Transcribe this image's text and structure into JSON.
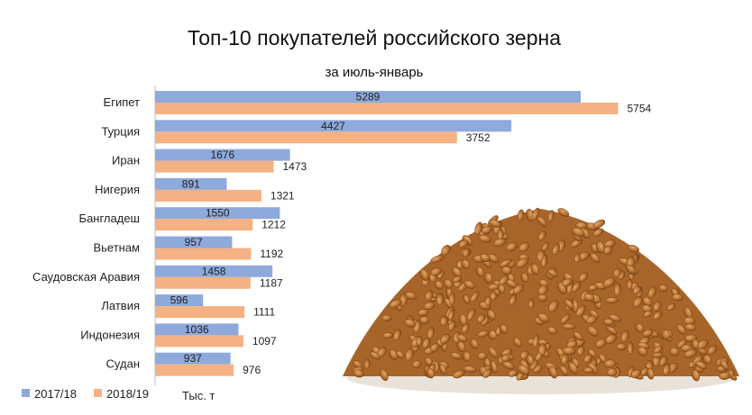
{
  "chart_data": {
    "type": "bar",
    "orientation": "horizontal",
    "title": "Топ-10 покупателей российского зерна",
    "subtitle": "за июль-январь",
    "unit": "Тыс. т",
    "categories": [
      "Египет",
      "Турция",
      "Иран",
      "Нигерия",
      "Бангладеш",
      "Вьетнам",
      "Саудовская Аравия",
      "Латвия",
      "Индонезия",
      "Судан"
    ],
    "series": [
      {
        "name": "2017/18",
        "color": "#8ea9db",
        "values": [
          5289,
          4427,
          1676,
          891,
          1550,
          957,
          1458,
          596,
          1036,
          937
        ]
      },
      {
        "name": "2018/19",
        "color": "#f4b183",
        "values": [
          5754,
          3752,
          1473,
          1321,
          1212,
          1192,
          1187,
          1111,
          1097,
          976
        ]
      }
    ],
    "xlim": [
      0,
      6000
    ],
    "grid": false,
    "legend": "bottom-left"
  },
  "decoration": {
    "illustration": "wheat-grain-pile"
  }
}
